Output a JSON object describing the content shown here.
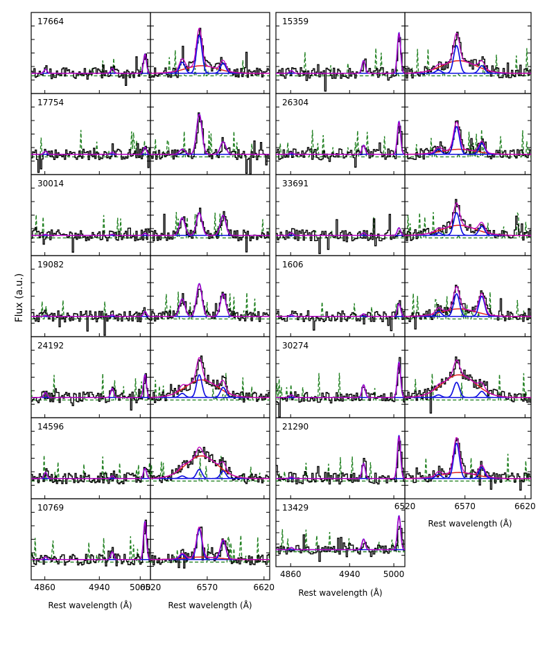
{
  "figure": {
    "ylabel": "Flux (a.u.)",
    "xlabel": "Rest wavelength (Å)",
    "left_ticks": [
      "4860",
      "4940",
      "5000"
    ],
    "right_ticks": [
      "6520",
      "6570",
      "6620"
    ]
  },
  "chart_data": {
    "type": "line",
    "ylabel": "Flux (a.u.)",
    "xlabel": "Rest wavelength (Å)",
    "panel_types": {
      "hbeta_oiii": {
        "xlim": [
          4840,
          5015
        ],
        "xticks": [
          4860,
          4940,
          5000
        ]
      },
      "halpha_nii": {
        "xlim": [
          6520,
          6625
        ],
        "xticks": [
          6520,
          6570,
          6620
        ]
      }
    },
    "objects": [
      {
        "id": "17664",
        "column": 0,
        "row": 0,
        "hb_oiii": {
          "hb": 0.08,
          "o1": 0.1,
          "o2": 0.38,
          "cont": true
        },
        "ha_nii": {
          "ha": 0.75,
          "n1": 0.22,
          "n2": 0.2,
          "broad": 0.15,
          "cont": true
        }
      },
      {
        "id": "17754",
        "column": 0,
        "row": 1,
        "hb_oiii": {
          "hb": 0.06,
          "o1": 0.04,
          "o2": 0.14,
          "cont": true
        },
        "ha_nii": {
          "ha": 0.8,
          "n1": 0.1,
          "n2": 0.25,
          "broad": 0.0,
          "cont": true
        }
      },
      {
        "id": "30014",
        "column": 0,
        "row": 2,
        "hb_oiii": {
          "hb": 0.02,
          "o1": 0.02,
          "o2": 0.04,
          "cont": true
        },
        "ha_nii": {
          "ha": 0.45,
          "n1": 0.35,
          "n2": 0.4,
          "broad": 0.0,
          "cont": true
        }
      },
      {
        "id": "19082",
        "column": 0,
        "row": 3,
        "hb_oiii": {
          "hb": 0.02,
          "o1": 0.03,
          "o2": 0.1,
          "cont": true
        },
        "ha_nii": {
          "ha": 0.65,
          "n1": 0.35,
          "n2": 0.45,
          "broad": 0.0,
          "cont": true
        }
      },
      {
        "id": "24192",
        "column": 0,
        "row": 4,
        "hb_oiii": {
          "hb": 0.1,
          "o1": 0.18,
          "o2": 0.45,
          "cont": true
        },
        "ha_nii": {
          "ha": 0.45,
          "n1": 0.08,
          "n2": 0.2,
          "broad": 0.35,
          "cont": true
        }
      },
      {
        "id": "14596",
        "column": 0,
        "row": 5,
        "hb_oiii": {
          "hb": 0.12,
          "o1": 0.05,
          "o2": 0.2,
          "cont": true
        },
        "ha_nii": {
          "ha": 0.18,
          "n1": 0.05,
          "n2": 0.15,
          "broad": 0.45,
          "cont": true
        }
      },
      {
        "id": "10769",
        "column": 0,
        "row": 6,
        "hb_oiii": {
          "hb": 0.05,
          "o1": 0.15,
          "o2": 0.75,
          "cont": true
        },
        "ha_nii": {
          "ha": 0.6,
          "n1": 0.1,
          "n2": 0.38,
          "broad": 0.05,
          "cont": true
        }
      },
      {
        "id": "15359",
        "column": 1,
        "row": 0,
        "hb_oiii": {
          "hb": 0.05,
          "o1": 0.25,
          "o2": 0.8,
          "cont": true
        },
        "ha_nii": {
          "ha": 0.55,
          "n1": 0.06,
          "n2": 0.15,
          "broad": 0.25,
          "cont": true
        }
      },
      {
        "id": "26304",
        "column": 1,
        "row": 1,
        "hb_oiii": {
          "hb": 0.03,
          "o1": 0.18,
          "o2": 0.65,
          "cont": true
        },
        "ha_nii": {
          "ha": 0.55,
          "n1": 0.1,
          "n2": 0.22,
          "broad": 0.1,
          "cont": true
        }
      },
      {
        "id": "33691",
        "column": 1,
        "row": 2,
        "hb_oiii": {
          "hb": 0.05,
          "o1": 0.05,
          "o2": 0.15,
          "cont": true
        },
        "ha_nii": {
          "ha": 0.45,
          "n1": 0.05,
          "n2": 0.18,
          "broad": 0.2,
          "cont": true
        }
      },
      {
        "id": "1606",
        "column": 1,
        "row": 3,
        "hb_oiii": {
          "hb": 0.03,
          "o1": 0.05,
          "o2": 0.25,
          "cont": true
        },
        "ha_nii": {
          "ha": 0.45,
          "n1": 0.1,
          "n2": 0.4,
          "broad": 0.15,
          "cont": true
        }
      },
      {
        "id": "30274",
        "column": 1,
        "row": 4,
        "hb_oiii": {
          "hb": 0.05,
          "o1": 0.25,
          "o2": 0.7,
          "cont": true
        },
        "ha_nii": {
          "ha": 0.3,
          "n1": 0.05,
          "n2": 0.12,
          "broad": 0.45,
          "cont": true
        }
      },
      {
        "id": "21290",
        "column": 1,
        "row": 5,
        "hb_oiii": {
          "hb": 0.03,
          "o1": 0.3,
          "o2": 0.85,
          "cont": true
        },
        "ha_nii": {
          "ha": 0.7,
          "n1": 0.08,
          "n2": 0.22,
          "broad": 0.12,
          "cont": true
        }
      },
      {
        "id": "13429",
        "column": 1,
        "row": 6,
        "hb_oiii": {
          "hb": 0.05,
          "o1": 0.25,
          "o2": 0.8,
          "cont": true
        },
        "ha_nii": null
      }
    ],
    "line_colors": {
      "observed": "#000000",
      "total_model": "#c000c0",
      "narrow": "#1010e0",
      "broad": "#e02020",
      "continuum": "#20b0d0",
      "sky": "#208020"
    }
  }
}
